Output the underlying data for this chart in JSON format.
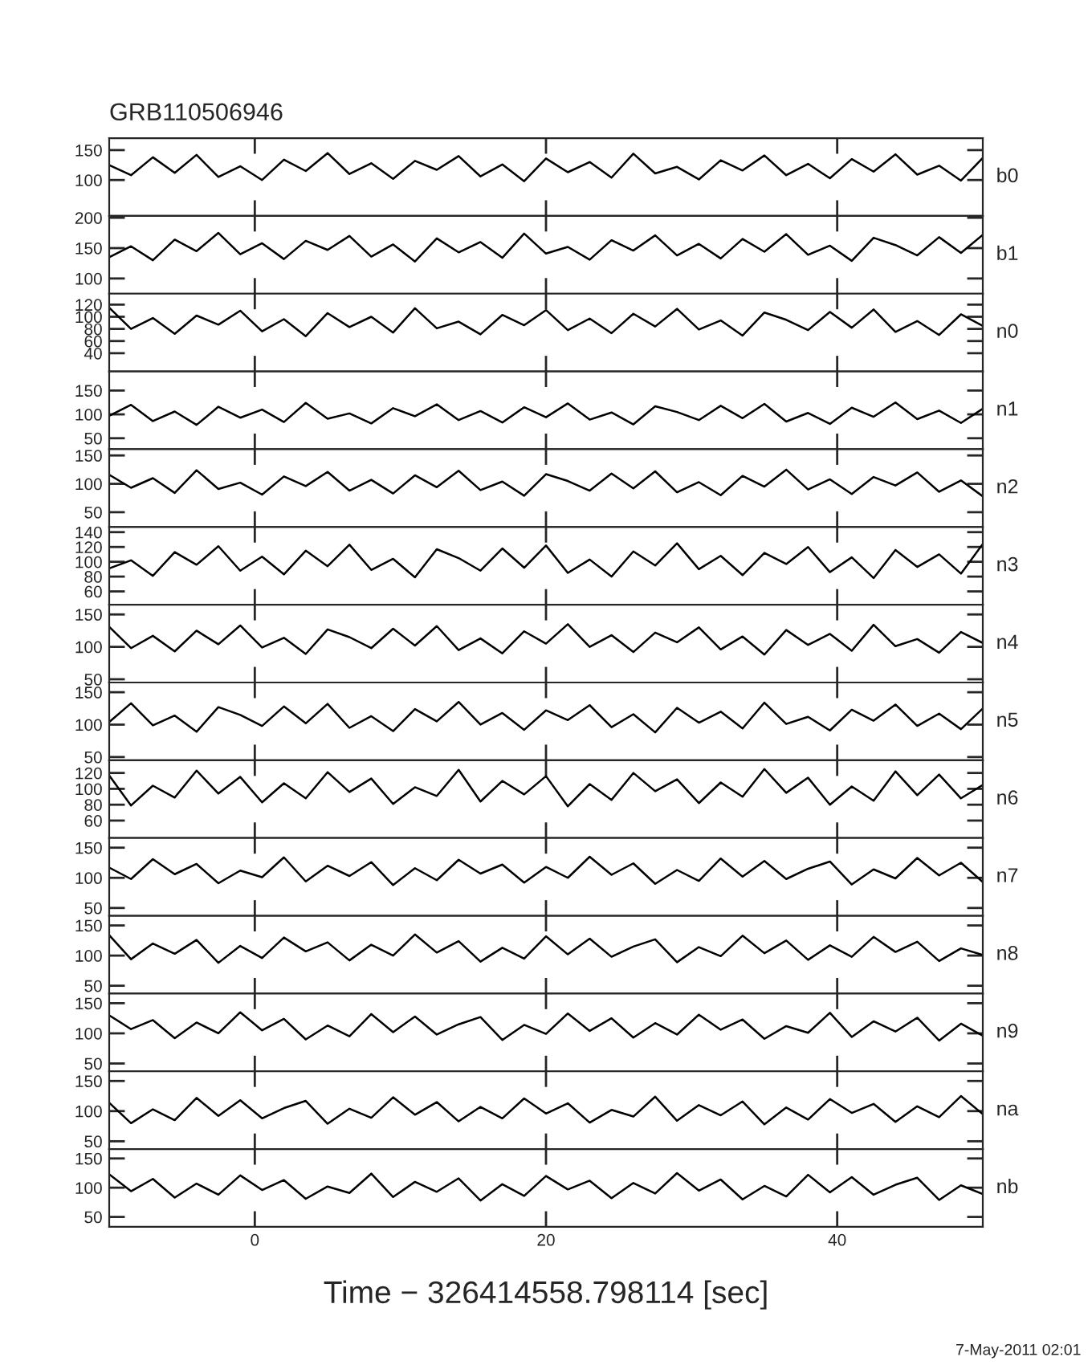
{
  "chart_data": [
    {
      "type": "line",
      "title": "GRB110506946",
      "ylabel": "b0",
      "tick_labels": "y",
      "xlim": [
        -10,
        50
      ],
      "xticks": [
        0,
        20,
        40
      ],
      "ylim": [
        40,
        170
      ],
      "yticks": [
        100,
        150
      ],
      "x": [
        -10,
        -8.5,
        -7,
        -5.5,
        -4,
        -2.5,
        -1,
        0.5,
        2,
        3.5,
        5,
        6.5,
        8,
        9.5,
        11,
        12.5,
        14,
        15.5,
        17,
        18.5,
        20,
        21.5,
        23,
        24.5,
        26,
        27.5,
        29,
        30.5,
        32,
        33.5,
        35,
        36.5,
        38,
        39.5,
        41,
        42.5,
        44,
        45.5,
        47,
        48.5,
        50
      ],
      "series": [
        {
          "color": "#000000",
          "values": [
            125,
            108,
            138,
            112,
            142,
            105,
            123,
            100,
            134,
            115,
            145,
            110,
            128,
            102,
            132,
            117,
            140,
            106,
            126,
            98,
            136,
            113,
            130,
            104,
            144,
            111,
            122,
            101,
            133,
            116,
            141,
            108,
            127,
            103,
            135,
            114,
            143,
            109,
            124,
            99,
            137
          ]
        }
      ]
    },
    {
      "type": "line",
      "ylabel": "b1",
      "tick_labels": "y",
      "xlim": [
        -10,
        50
      ],
      "xticks": [
        0,
        20,
        40
      ],
      "ylim": [
        75,
        203
      ],
      "yticks": [
        100,
        150,
        200
      ],
      "x": [
        -10,
        -8.5,
        -7,
        -5.5,
        -4,
        -2.5,
        -1,
        0.5,
        2,
        3.5,
        5,
        6.5,
        8,
        9.5,
        11,
        12.5,
        14,
        15.5,
        17,
        18.5,
        20,
        21.5,
        23,
        24.5,
        26,
        27.5,
        29,
        30.5,
        32,
        33.5,
        35,
        36.5,
        38,
        39.5,
        41,
        42.5,
        44,
        45.5,
        47,
        48.5,
        50
      ],
      "series": [
        {
          "color": "#000000",
          "values": [
            135,
            153,
            130,
            164,
            145,
            175,
            140,
            158,
            132,
            162,
            147,
            170,
            136,
            156,
            128,
            166,
            143,
            160,
            134,
            174,
            141,
            152,
            131,
            163,
            146,
            171,
            138,
            157,
            133,
            165,
            144,
            173,
            139,
            154,
            129,
            167,
            155,
            138,
            168,
            142,
            172
          ]
        }
      ]
    },
    {
      "type": "line",
      "ylabel": "n0",
      "tick_labels": "y",
      "xlim": [
        -10,
        50
      ],
      "xticks": [
        0,
        20,
        40
      ],
      "ylim": [
        10,
        138
      ],
      "yticks": [
        40,
        60,
        80,
        100,
        120
      ],
      "x": [
        -10,
        -8.5,
        -7,
        -5.5,
        -4,
        -2.5,
        -1,
        0.5,
        2,
        3.5,
        5,
        6.5,
        8,
        9.5,
        11,
        12.5,
        14,
        15.5,
        17,
        18.5,
        20,
        21.5,
        23,
        24.5,
        26,
        27.5,
        29,
        30.5,
        32,
        33.5,
        35,
        36.5,
        38,
        39.5,
        41,
        42.5,
        44,
        45.5,
        47,
        48.5,
        50
      ],
      "series": [
        {
          "color": "#000000",
          "values": [
            115,
            80,
            98,
            72,
            102,
            87,
            110,
            76,
            96,
            68,
            106,
            83,
            100,
            74,
            114,
            81,
            92,
            71,
            103,
            86,
            111,
            78,
            97,
            73,
            105,
            84,
            113,
            79,
            94,
            69,
            107,
            95,
            78,
            108,
            82,
            112,
            75,
            93,
            70,
            104,
            85
          ]
        }
      ]
    },
    {
      "type": "line",
      "ylabel": "n1",
      "tick_labels": "y",
      "xlim": [
        -10,
        50
      ],
      "xticks": [
        0,
        20,
        40
      ],
      "ylim": [
        27,
        190
      ],
      "yticks": [
        50,
        100,
        150
      ],
      "x": [
        -10,
        -8.5,
        -7,
        -5.5,
        -4,
        -2.5,
        -1,
        0.5,
        2,
        3.5,
        5,
        6.5,
        8,
        9.5,
        11,
        12.5,
        14,
        15.5,
        17,
        18.5,
        20,
        21.5,
        23,
        24.5,
        26,
        27.5,
        29,
        30.5,
        32,
        33.5,
        35,
        36.5,
        38,
        39.5,
        41,
        42.5,
        44,
        45.5,
        47,
        48.5,
        50
      ],
      "series": [
        {
          "color": "#000000",
          "values": [
            97,
            120,
            86,
            106,
            78,
            116,
            93,
            110,
            84,
            124,
            91,
            102,
            81,
            113,
            96,
            121,
            88,
            107,
            83,
            115,
            94,
            123,
            89,
            104,
            79,
            117,
            105,
            88,
            118,
            92,
            122,
            85,
            103,
            80,
            114,
            95,
            125,
            90,
            108,
            82,
            112
          ]
        }
      ]
    },
    {
      "type": "line",
      "ylabel": "n2",
      "tick_labels": "y",
      "xlim": [
        -10,
        50
      ],
      "xticks": [
        0,
        20,
        40
      ],
      "ylim": [
        24,
        161
      ],
      "yticks": [
        50,
        100,
        150
      ],
      "x": [
        -10,
        -8.5,
        -7,
        -5.5,
        -4,
        -2.5,
        -1,
        0.5,
        2,
        3.5,
        5,
        6.5,
        8,
        9.5,
        11,
        12.5,
        14,
        15.5,
        17,
        18.5,
        20,
        21.5,
        23,
        24.5,
        26,
        27.5,
        29,
        30.5,
        32,
        33.5,
        35,
        36.5,
        38,
        39.5,
        41,
        42.5,
        44,
        45.5,
        47,
        48.5,
        50
      ],
      "series": [
        {
          "color": "#000000",
          "values": [
            116,
            93,
            110,
            84,
            124,
            91,
            102,
            81,
            113,
            96,
            121,
            88,
            107,
            83,
            115,
            94,
            123,
            89,
            104,
            79,
            117,
            105,
            88,
            118,
            92,
            122,
            85,
            103,
            80,
            114,
            95,
            125,
            90,
            108,
            82,
            112,
            97,
            120,
            86,
            106,
            78
          ]
        }
      ]
    },
    {
      "type": "line",
      "ylabel": "n3",
      "tick_labels": "y",
      "xlim": [
        -10,
        50
      ],
      "xticks": [
        0,
        20,
        40
      ],
      "ylim": [
        42,
        147
      ],
      "yticks": [
        60,
        80,
        100,
        120,
        140
      ],
      "x": [
        -10,
        -8.5,
        -7,
        -5.5,
        -4,
        -2.5,
        -1,
        0.5,
        2,
        3.5,
        5,
        6.5,
        8,
        9.5,
        11,
        12.5,
        14,
        15.5,
        17,
        18.5,
        20,
        21.5,
        23,
        24.5,
        26,
        27.5,
        29,
        30.5,
        32,
        33.5,
        35,
        36.5,
        38,
        39.5,
        41,
        42.5,
        44,
        45.5,
        47,
        48.5,
        50
      ],
      "series": [
        {
          "color": "#000000",
          "values": [
            91,
            102,
            81,
            113,
            96,
            121,
            88,
            107,
            83,
            115,
            94,
            123,
            89,
            104,
            79,
            117,
            105,
            88,
            118,
            92,
            122,
            85,
            103,
            80,
            114,
            95,
            125,
            90,
            108,
            82,
            112,
            97,
            120,
            86,
            106,
            78,
            116,
            93,
            110,
            84,
            124
          ]
        }
      ]
    },
    {
      "type": "line",
      "ylabel": "n4",
      "tick_labels": "y",
      "xlim": [
        -10,
        50
      ],
      "xticks": [
        0,
        20,
        40
      ],
      "ylim": [
        45,
        165
      ],
      "yticks": [
        50,
        100,
        150
      ],
      "x": [
        -10,
        -8.5,
        -7,
        -5.5,
        -4,
        -2.5,
        -1,
        0.5,
        2,
        3.5,
        5,
        6.5,
        8,
        9.5,
        11,
        12.5,
        14,
        15.5,
        17,
        18.5,
        20,
        21.5,
        23,
        24.5,
        26,
        27.5,
        29,
        30.5,
        32,
        33.5,
        35,
        36.5,
        38,
        39.5,
        41,
        42.5,
        44,
        45.5,
        47,
        48.5,
        50
      ],
      "series": [
        {
          "color": "#000000",
          "values": [
            131,
            98,
            117,
            93,
            125,
            104,
            133,
            99,
            114,
            89,
            127,
            115,
            98,
            128,
            102,
            132,
            95,
            113,
            90,
            124,
            105,
            135,
            100,
            118,
            92,
            122,
            107,
            130,
            96,
            116,
            88,
            126,
            103,
            120,
            94,
            134,
            101,
            112,
            91,
            123,
            106
          ]
        }
      ]
    },
    {
      "type": "line",
      "ylabel": "n5",
      "tick_labels": "y",
      "xlim": [
        -10,
        50
      ],
      "xticks": [
        0,
        20,
        40
      ],
      "ylim": [
        45,
        165
      ],
      "yticks": [
        50,
        100,
        150
      ],
      "x": [
        -10,
        -8.5,
        -7,
        -5.5,
        -4,
        -2.5,
        -1,
        0.5,
        2,
        3.5,
        5,
        6.5,
        8,
        9.5,
        11,
        12.5,
        14,
        15.5,
        17,
        18.5,
        20,
        21.5,
        23,
        24.5,
        26,
        27.5,
        29,
        30.5,
        32,
        33.5,
        35,
        36.5,
        38,
        39.5,
        41,
        42.5,
        44,
        45.5,
        47,
        48.5,
        50
      ],
      "series": [
        {
          "color": "#000000",
          "values": [
            104,
            133,
            99,
            114,
            89,
            127,
            115,
            98,
            128,
            102,
            132,
            95,
            113,
            90,
            124,
            105,
            135,
            100,
            118,
            92,
            122,
            107,
            130,
            96,
            116,
            88,
            126,
            103,
            120,
            94,
            134,
            101,
            112,
            91,
            123,
            106,
            131,
            98,
            117,
            93,
            125
          ]
        }
      ]
    },
    {
      "type": "line",
      "ylabel": "n6",
      "tick_labels": "y",
      "xlim": [
        -10,
        50
      ],
      "xticks": [
        0,
        20,
        40
      ],
      "ylim": [
        38,
        136
      ],
      "yticks": [
        60,
        80,
        100,
        120
      ],
      "x": [
        -10,
        -8.5,
        -7,
        -5.5,
        -4,
        -2.5,
        -1,
        0.5,
        2,
        3.5,
        5,
        6.5,
        8,
        9.5,
        11,
        12.5,
        14,
        15.5,
        17,
        18.5,
        20,
        21.5,
        23,
        24.5,
        26,
        27.5,
        29,
        30.5,
        32,
        33.5,
        35,
        36.5,
        38,
        39.5,
        41,
        42.5,
        44,
        45.5,
        47,
        48.5,
        50
      ],
      "series": [
        {
          "color": "#000000",
          "values": [
            117,
            79,
            104,
            89,
            123,
            94,
            115,
            83,
            107,
            88,
            121,
            96,
            113,
            81,
            102,
            91,
            124,
            84,
            110,
            93,
            116,
            78,
            106,
            86,
            120,
            97,
            112,
            82,
            108,
            90,
            125,
            95,
            114,
            80,
            103,
            85,
            122,
            92,
            118,
            88,
            105
          ]
        }
      ]
    },
    {
      "type": "line",
      "ylabel": "n7",
      "tick_labels": "y",
      "xlim": [
        -10,
        50
      ],
      "xticks": [
        0,
        20,
        40
      ],
      "ylim": [
        37,
        166
      ],
      "yticks": [
        50,
        100,
        150
      ],
      "x": [
        -10,
        -8.5,
        -7,
        -5.5,
        -4,
        -2.5,
        -1,
        0.5,
        2,
        3.5,
        5,
        6.5,
        8,
        9.5,
        11,
        12.5,
        14,
        15.5,
        17,
        18.5,
        20,
        21.5,
        23,
        24.5,
        26,
        27.5,
        29,
        30.5,
        32,
        33.5,
        35,
        36.5,
        38,
        39.5,
        41,
        42.5,
        44,
        45.5,
        47,
        48.5,
        50
      ],
      "series": [
        {
          "color": "#000000",
          "values": [
            117,
            98,
            131,
            106,
            123,
            91,
            112,
            101,
            134,
            94,
            120,
            103,
            126,
            88,
            116,
            96,
            130,
            107,
            122,
            92,
            118,
            100,
            135,
            105,
            124,
            90,
            113,
            95,
            132,
            102,
            128,
            98,
            115,
            127,
            89,
            114,
            99,
            133,
            104,
            125,
            93
          ]
        }
      ]
    },
    {
      "type": "line",
      "ylabel": "n8",
      "tick_labels": "y",
      "xlim": [
        -10,
        50
      ],
      "xticks": [
        0,
        20,
        40
      ],
      "ylim": [
        37,
        166
      ],
      "yticks": [
        50,
        100,
        150
      ],
      "x": [
        -10,
        -8.5,
        -7,
        -5.5,
        -4,
        -2.5,
        -1,
        0.5,
        2,
        3.5,
        5,
        6.5,
        8,
        9.5,
        11,
        12.5,
        14,
        15.5,
        17,
        18.5,
        20,
        21.5,
        23,
        24.5,
        26,
        27.5,
        29,
        30.5,
        32,
        33.5,
        35,
        36.5,
        38,
        39.5,
        41,
        42.5,
        44,
        45.5,
        47,
        48.5,
        50
      ],
      "series": [
        {
          "color": "#000000",
          "values": [
            134,
            94,
            120,
            103,
            126,
            88,
            116,
            96,
            130,
            107,
            122,
            92,
            118,
            100,
            135,
            105,
            124,
            90,
            113,
            95,
            132,
            102,
            128,
            98,
            115,
            127,
            89,
            114,
            99,
            133,
            104,
            125,
            93,
            117,
            98,
            131,
            106,
            123,
            91,
            112,
            101
          ]
        }
      ]
    },
    {
      "type": "line",
      "ylabel": "n9",
      "tick_labels": "y",
      "xlim": [
        -10,
        50
      ],
      "xticks": [
        0,
        20,
        40
      ],
      "ylim": [
        37,
        166
      ],
      "yticks": [
        50,
        100,
        150
      ],
      "x": [
        -10,
        -8.5,
        -7,
        -5.5,
        -4,
        -2.5,
        -1,
        0.5,
        2,
        3.5,
        5,
        6.5,
        8,
        9.5,
        11,
        12.5,
        14,
        15.5,
        17,
        18.5,
        20,
        21.5,
        23,
        24.5,
        26,
        27.5,
        29,
        30.5,
        32,
        33.5,
        35,
        36.5,
        38,
        39.5,
        41,
        42.5,
        44,
        45.5,
        47,
        48.5,
        50
      ],
      "series": [
        {
          "color": "#000000",
          "values": [
            130,
            107,
            122,
            92,
            118,
            100,
            135,
            105,
            124,
            90,
            113,
            95,
            132,
            102,
            128,
            98,
            115,
            127,
            89,
            114,
            99,
            133,
            104,
            125,
            93,
            117,
            98,
            131,
            106,
            123,
            91,
            112,
            101,
            134,
            94,
            120,
            103,
            126,
            88,
            116,
            96
          ]
        }
      ]
    },
    {
      "type": "line",
      "ylabel": "na",
      "tick_labels": "y",
      "xlim": [
        -10,
        50
      ],
      "xticks": [
        0,
        20,
        40
      ],
      "ylim": [
        37,
        166
      ],
      "yticks": [
        50,
        100,
        150
      ],
      "x": [
        -10,
        -8.5,
        -7,
        -5.5,
        -4,
        -2.5,
        -1,
        0.5,
        2,
        3.5,
        5,
        6.5,
        8,
        9.5,
        11,
        12.5,
        14,
        15.5,
        17,
        18.5,
        20,
        21.5,
        23,
        24.5,
        26,
        27.5,
        29,
        30.5,
        32,
        33.5,
        35,
        36.5,
        38,
        39.5,
        41,
        42.5,
        44,
        45.5,
        47,
        48.5,
        50
      ],
      "series": [
        {
          "color": "#000000",
          "values": [
            114,
            80,
            103,
            85,
            122,
            92,
            118,
            88,
            105,
            117,
            79,
            104,
            89,
            123,
            94,
            115,
            83,
            107,
            88,
            121,
            96,
            113,
            81,
            102,
            91,
            124,
            84,
            110,
            93,
            116,
            78,
            106,
            86,
            120,
            97,
            112,
            82,
            108,
            90,
            125,
            95
          ]
        }
      ]
    },
    {
      "type": "line",
      "ylabel": "nb",
      "xlabel": "Time − 326414558.798114 [sec]",
      "annotations": [
        "7-May-2011 02:01"
      ],
      "xlim": [
        -10,
        50
      ],
      "xticks": [
        0,
        20,
        40
      ],
      "ylim": [
        33,
        166
      ],
      "yticks": [
        50,
        100,
        150
      ],
      "x": [
        -10,
        -8.5,
        -7,
        -5.5,
        -4,
        -2.5,
        -1,
        0.5,
        2,
        3.5,
        5,
        6.5,
        8,
        9.5,
        11,
        12.5,
        14,
        15.5,
        17,
        18.5,
        20,
        21.5,
        23,
        24.5,
        26,
        27.5,
        29,
        30.5,
        32,
        33.5,
        35,
        36.5,
        38,
        39.5,
        41,
        42.5,
        44,
        45.5,
        47,
        48.5,
        50
      ],
      "series": [
        {
          "color": "#000000",
          "values": [
            123,
            94,
            115,
            83,
            107,
            88,
            121,
            96,
            113,
            81,
            102,
            91,
            124,
            84,
            110,
            93,
            116,
            78,
            106,
            86,
            120,
            97,
            112,
            82,
            108,
            90,
            125,
            95,
            114,
            80,
            103,
            85,
            122,
            92,
            118,
            88,
            105,
            117,
            79,
            104,
            89
          ]
        }
      ]
    }
  ]
}
